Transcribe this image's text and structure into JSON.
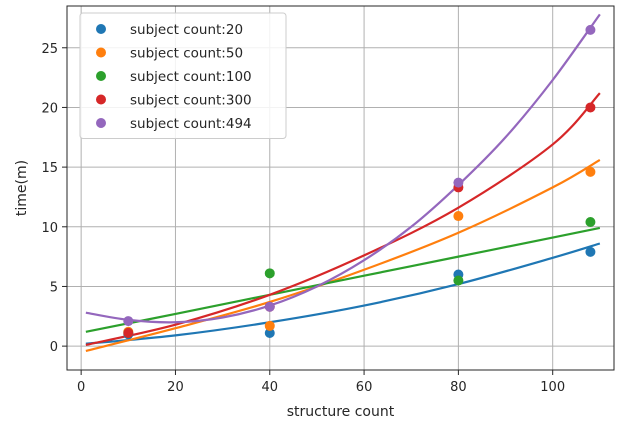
{
  "chart_data": {
    "type": "scatter",
    "xlabel": "structure count",
    "ylabel": "time(m)",
    "xlim": [
      -3,
      113
    ],
    "ylim": [
      -2,
      28.5
    ],
    "xticks": [
      0,
      20,
      40,
      60,
      80,
      100
    ],
    "yticks": [
      0,
      5,
      10,
      15,
      20,
      25
    ],
    "grid": true,
    "legend_position": "top-left",
    "series": [
      {
        "name": "subject count:20",
        "color": "#1f77b4",
        "points": [
          [
            10,
            1.0
          ],
          [
            40,
            1.1
          ],
          [
            80,
            6.0
          ],
          [
            108,
            7.9
          ]
        ],
        "fit": [
          [
            1,
            0.2
          ],
          [
            20,
            0.9
          ],
          [
            40,
            2.0
          ],
          [
            60,
            3.4
          ],
          [
            80,
            5.2
          ],
          [
            100,
            7.4
          ],
          [
            110,
            8.6
          ]
        ]
      },
      {
        "name": "subject count:50",
        "color": "#ff7f0e",
        "points": [
          [
            10,
            1.2
          ],
          [
            40,
            1.7
          ],
          [
            80,
            10.9
          ],
          [
            108,
            14.6
          ]
        ],
        "fit": [
          [
            1,
            -0.4
          ],
          [
            20,
            1.5
          ],
          [
            40,
            3.7
          ],
          [
            60,
            6.4
          ],
          [
            80,
            9.5
          ],
          [
            100,
            13.3
          ],
          [
            110,
            15.6
          ]
        ]
      },
      {
        "name": "subject count:100",
        "color": "#2ca02c",
        "points": [
          [
            10,
            1.1
          ],
          [
            40,
            6.1
          ],
          [
            80,
            5.5
          ],
          [
            108,
            10.4
          ]
        ],
        "fit": [
          [
            1,
            1.2
          ],
          [
            20,
            2.7
          ],
          [
            40,
            4.3
          ],
          [
            60,
            5.9
          ],
          [
            80,
            7.5
          ],
          [
            100,
            9.1
          ],
          [
            110,
            9.9
          ]
        ]
      },
      {
        "name": "subject count:300",
        "color": "#d62728",
        "points": [
          [
            10,
            1.1
          ],
          [
            40,
            3.3
          ],
          [
            80,
            13.3
          ],
          [
            108,
            20.0
          ]
        ],
        "fit": [
          [
            1,
            0.1
          ],
          [
            20,
            1.8
          ],
          [
            40,
            4.3
          ],
          [
            60,
            7.6
          ],
          [
            80,
            11.6
          ],
          [
            100,
            16.9
          ],
          [
            110,
            21.2
          ]
        ]
      },
      {
        "name": "subject count:494",
        "color": "#9467bd",
        "points": [
          [
            10,
            2.1
          ],
          [
            40,
            3.3
          ],
          [
            80,
            13.7
          ],
          [
            108,
            26.5
          ]
        ],
        "fit": [
          [
            1,
            2.8
          ],
          [
            10,
            2.2
          ],
          [
            20,
            2.0
          ],
          [
            30,
            2.4
          ],
          [
            40,
            3.4
          ],
          [
            50,
            5.0
          ],
          [
            60,
            7.2
          ],
          [
            70,
            10.0
          ],
          [
            80,
            13.5
          ],
          [
            90,
            17.5
          ],
          [
            100,
            22.3
          ],
          [
            110,
            27.8
          ]
        ]
      }
    ]
  }
}
